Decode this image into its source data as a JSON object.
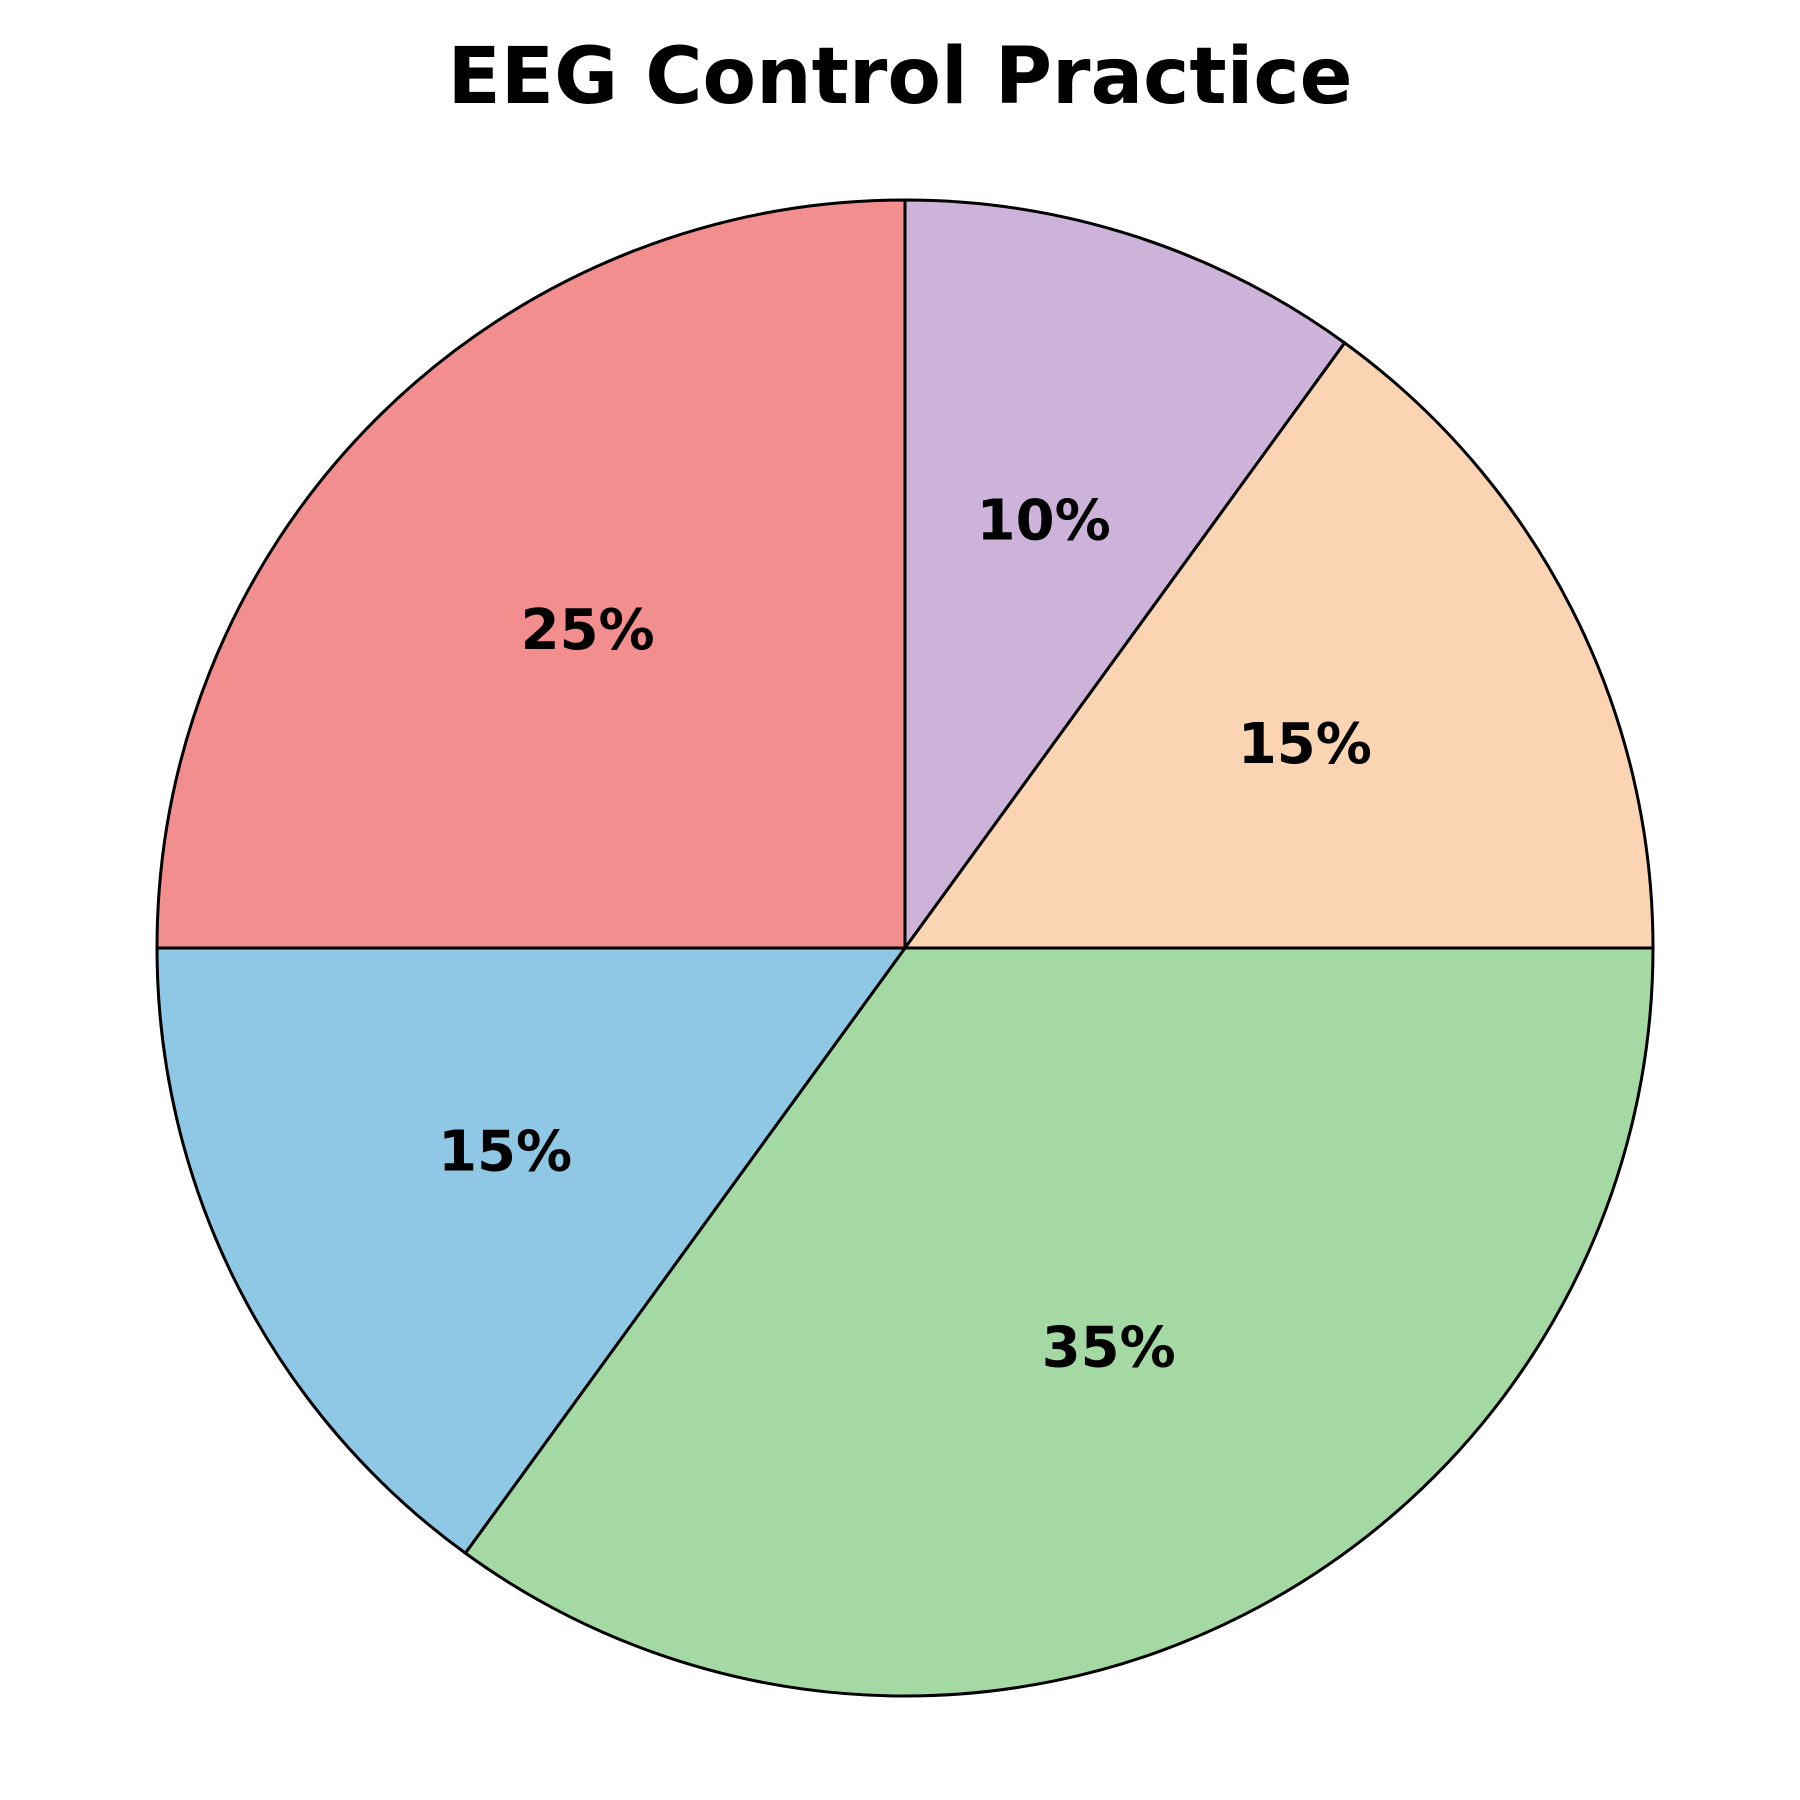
{
  "chart_data": {
    "type": "pie",
    "title": "EEG Control Practice",
    "slices": [
      {
        "value": 10,
        "label": "10%",
        "color": "#cdb3da"
      },
      {
        "value": 15,
        "label": "15%",
        "color": "#fbd4b4"
      },
      {
        "value": 35,
        "label": "35%",
        "color": "#a4d9a4"
      },
      {
        "value": 15,
        "label": "15%",
        "color": "#8fc8e5"
      },
      {
        "value": 25,
        "label": "25%",
        "color": "#f28e8e"
      }
    ],
    "start_angle_deg": 90,
    "direction": "clockwise",
    "legend": "none"
  }
}
